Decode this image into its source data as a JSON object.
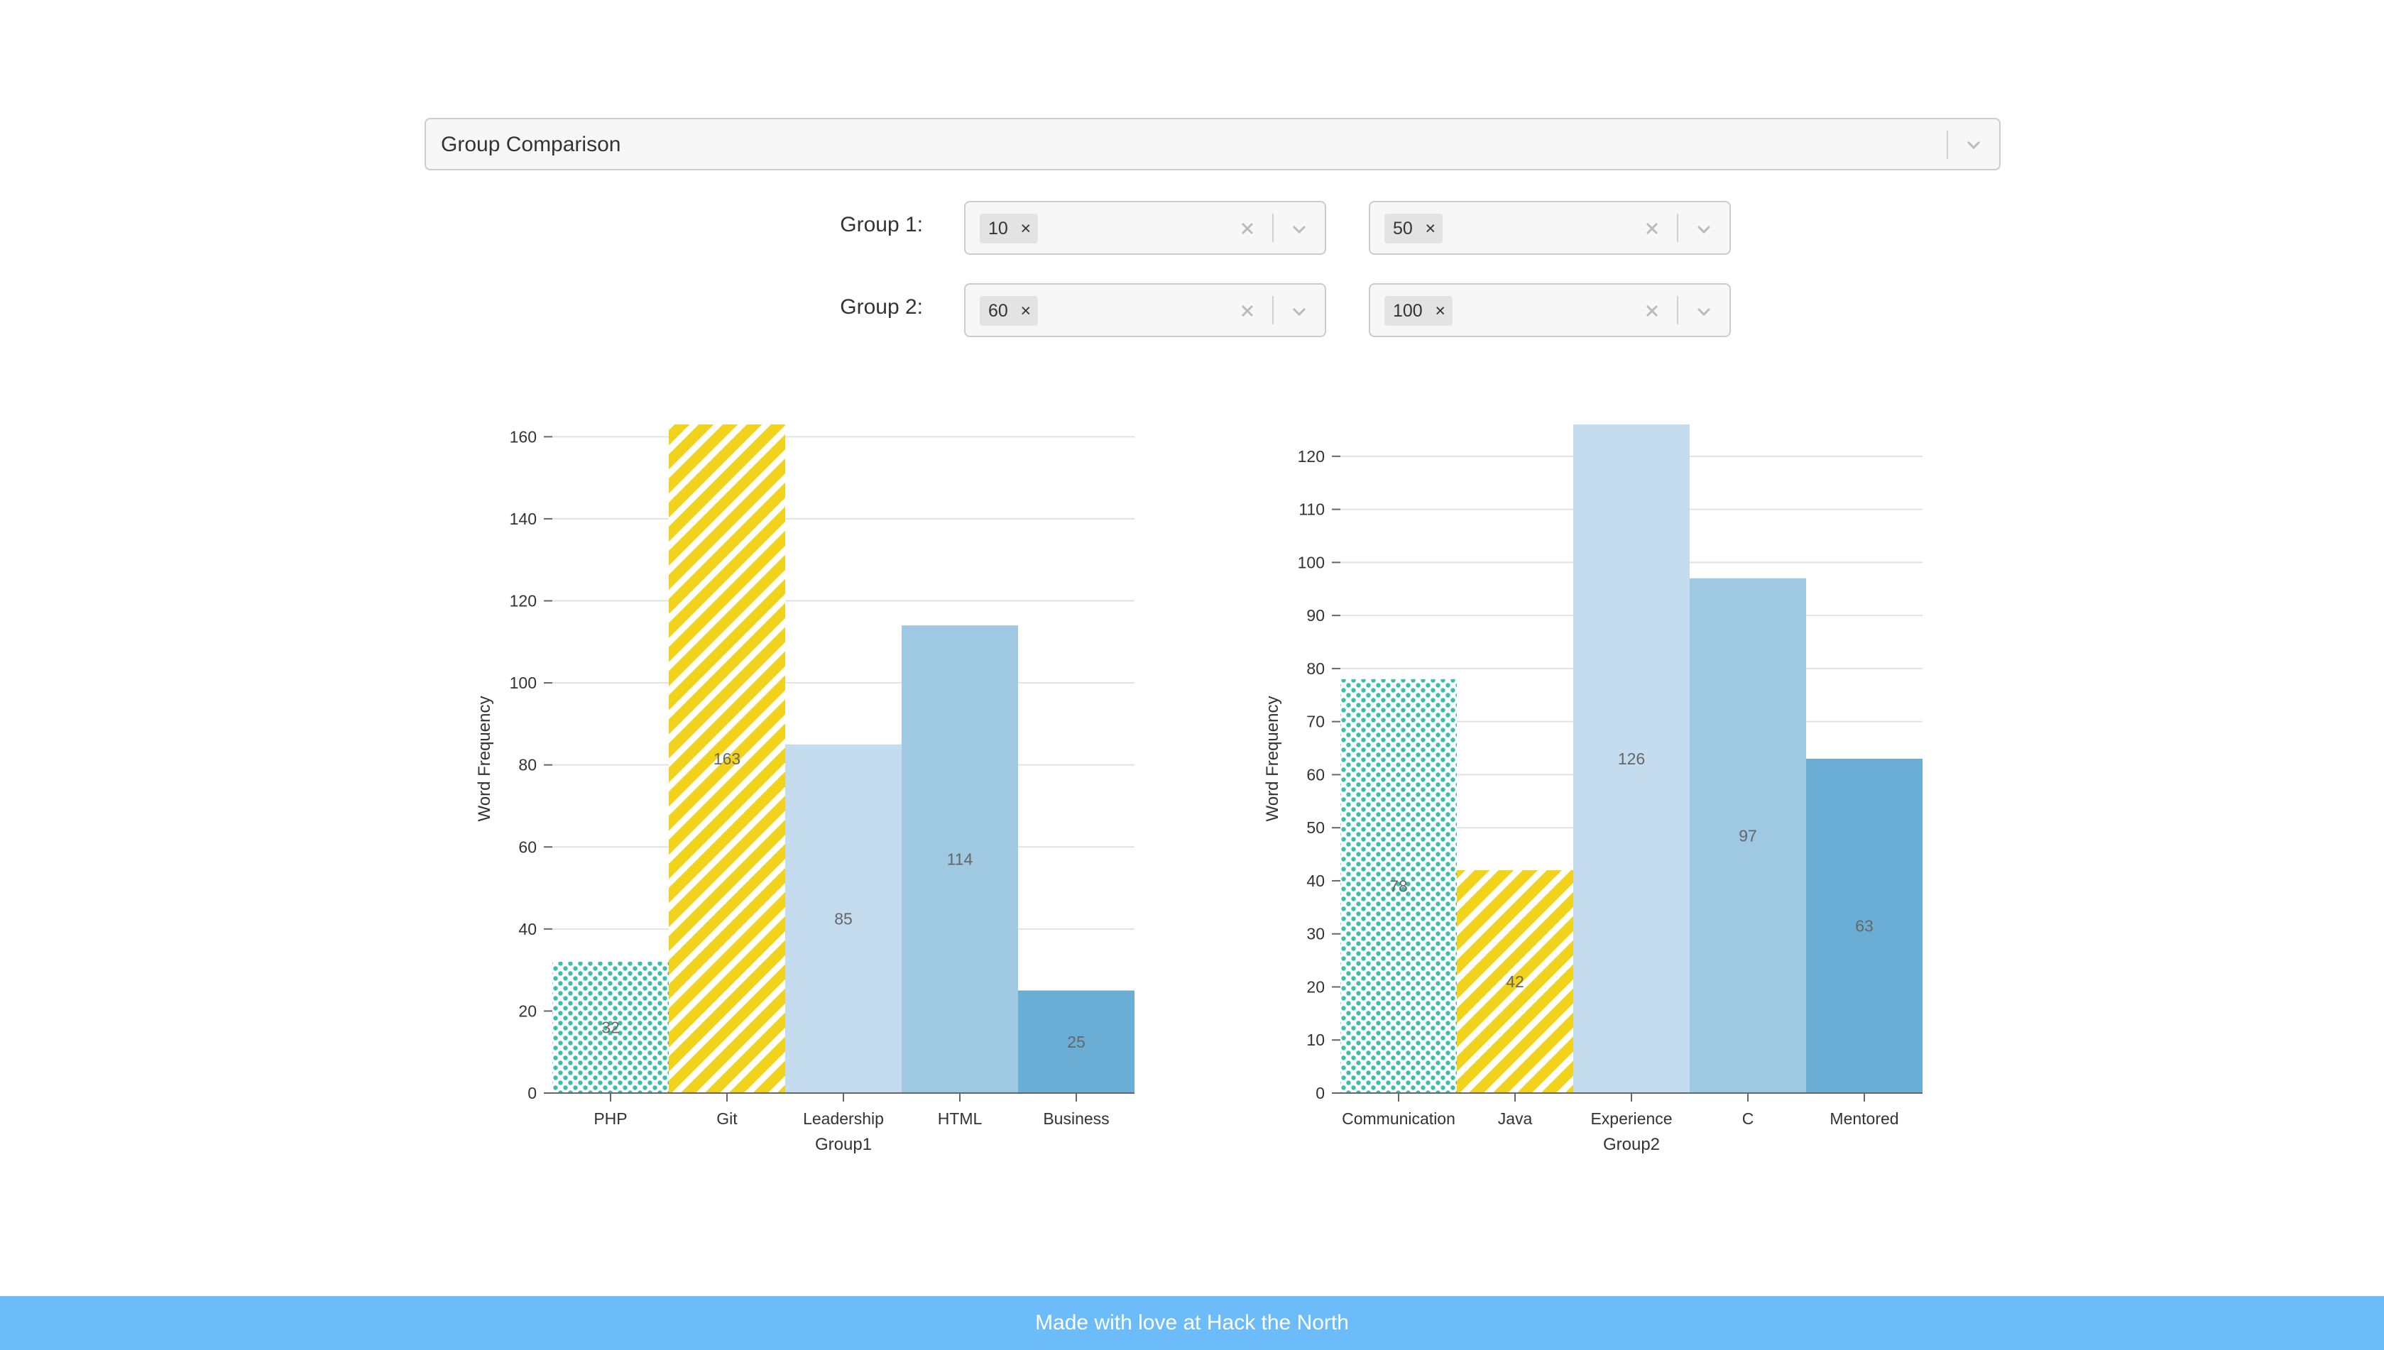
{
  "header_select": {
    "value": "Group Comparison"
  },
  "groups": [
    {
      "label": "Group 1:",
      "selects": [
        {
          "chip": "10"
        },
        {
          "chip": "50"
        }
      ]
    },
    {
      "label": "Group 2:",
      "selects": [
        {
          "chip": "60"
        },
        {
          "chip": "100"
        }
      ]
    }
  ],
  "icons": {
    "chip_remove": "×",
    "clear": "clear-icon",
    "dropdown": "chevron-down-icon"
  },
  "colors": {
    "teal_dots": "#3bbfa8",
    "yellow_stripes": "#f2d31b",
    "light_blue": "#c5dbee",
    "mid_blue": "#9fc8e2",
    "dark_blue": "#6aaed6",
    "footer": "#6bbcf8"
  },
  "chart_data": [
    {
      "type": "bar",
      "categories": [
        "PHP",
        "Git",
        "Leadership",
        "HTML",
        "Business"
      ],
      "values": [
        32,
        163,
        85,
        114,
        25
      ],
      "data_labels": [
        "32",
        "163",
        "85",
        "114",
        "25"
      ],
      "xlabel": "Group1",
      "ylabel": "Word Frequency",
      "ylim": [
        0,
        163
      ],
      "yticks": [
        0,
        20,
        40,
        60,
        80,
        100,
        120,
        140,
        160
      ],
      "fills": [
        "teal_dots",
        "yellow_stripes",
        "light_blue",
        "mid_blue",
        "dark_blue"
      ],
      "grid": true
    },
    {
      "type": "bar",
      "categories": [
        "Communication",
        "Java",
        "Experience",
        "C",
        "Mentored"
      ],
      "values": [
        78,
        42,
        126,
        97,
        63
      ],
      "data_labels": [
        "78",
        "42",
        "126",
        "97",
        "63"
      ],
      "xlabel": "Group2",
      "ylabel": "Word Frequency",
      "ylim": [
        0,
        126
      ],
      "yticks": [
        0,
        10,
        20,
        30,
        40,
        50,
        60,
        70,
        80,
        90,
        100,
        110,
        120
      ],
      "fills": [
        "teal_dots",
        "yellow_stripes",
        "light_blue",
        "mid_blue",
        "dark_blue"
      ],
      "grid": true
    }
  ],
  "footer": {
    "text": "Made with love at Hack the North"
  }
}
